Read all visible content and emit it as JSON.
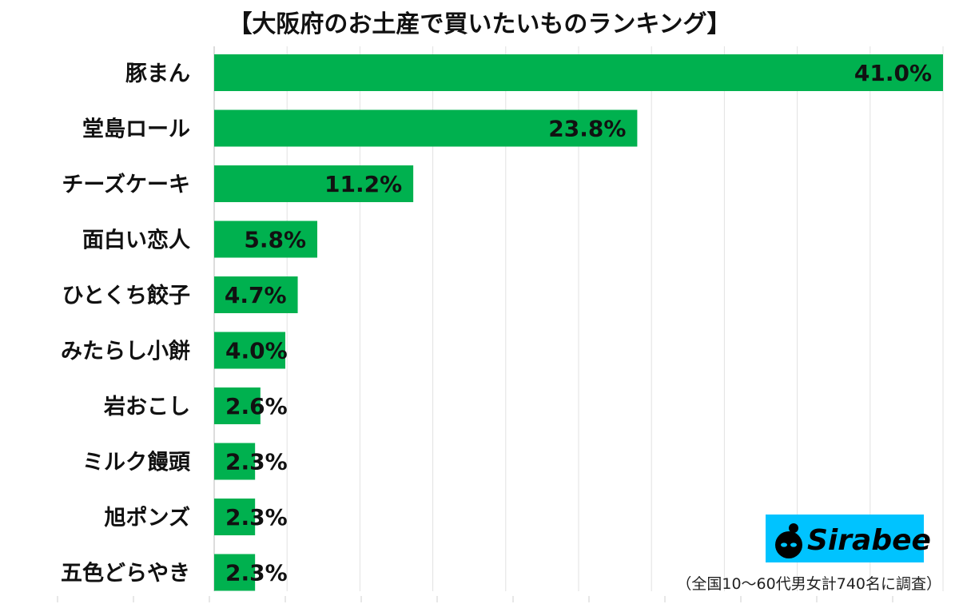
{
  "chart_data": {
    "type": "bar",
    "orientation": "horizontal",
    "title": "【大阪府のお土産で買いたいものランキング】",
    "categories": [
      "豚まん",
      "堂島ロール",
      "チーズケーキ",
      "面白い恋人",
      "ひとくち餃子",
      "みたらし小餅",
      "岩おこし",
      "ミルク饅頭",
      "旭ポンズ",
      "五色どらやき"
    ],
    "values": [
      41.0,
      23.8,
      11.2,
      5.8,
      4.7,
      4.0,
      2.6,
      2.3,
      2.3,
      2.3
    ],
    "value_labels": [
      "41.0%",
      "23.8%",
      "11.2%",
      "5.8%",
      "4.7%",
      "4.0%",
      "2.6%",
      "2.3%",
      "2.3%",
      "2.3%"
    ],
    "xlim": [
      0,
      41
    ],
    "unit": "%",
    "grid": true,
    "bar_color": "#00b14f",
    "xlabel": "",
    "ylabel": ""
  },
  "note": "（全国10〜60代男女計740名に調査）",
  "logo": {
    "text": "Sirabee",
    "background": "#00c3ff"
  }
}
